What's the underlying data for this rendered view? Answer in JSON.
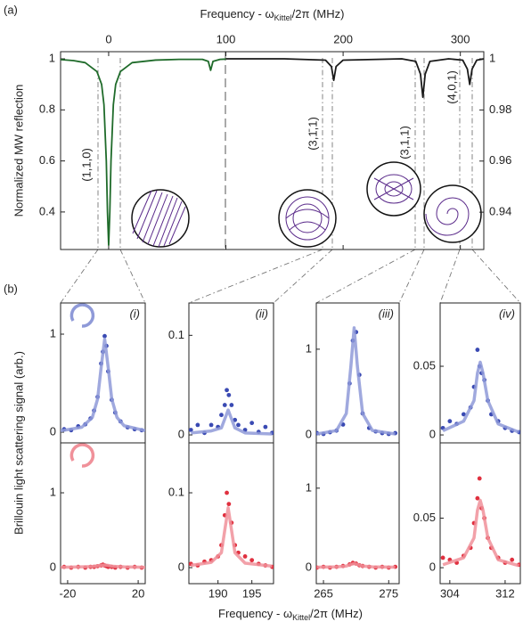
{
  "panel_labels": [
    "(a)",
    "(b)"
  ],
  "shared_y_label": "Brillouin light scattering signal (arb.)",
  "shared_x_label": [
    "Frequency - ω",
    "Kittel",
    "/2π (MHz)"
  ],
  "chart_data": [
    {
      "type": "line",
      "x_label": [
        "Frequency - ω",
        "Kittel",
        "/2π (MHz)"
      ],
      "y_label": "Normalized MW reflection",
      "annotations": [
        "(1,1,0)",
        "(3,1̄,1)",
        "(3,1,1)",
        "(4,0,1)"
      ],
      "xlim": [
        -41,
        320
      ],
      "xticks": [
        0,
        100,
        200,
        300
      ],
      "ylim": [
        0.253,
        1.028
      ],
      "yticks": [
        0.4,
        0.6,
        0.8,
        1
      ],
      "y2lim": [
        0.9254,
        1.0028
      ],
      "y2ticks": [
        0.94,
        0.96,
        0.98,
        1
      ],
      "series": [
        {
          "color": "#1f6b2a",
          "x": [
            -41,
            -30,
            -20,
            -10,
            -6,
            -4,
            -2,
            -1,
            0,
            1,
            2,
            4,
            6,
            10,
            20,
            40,
            60,
            80,
            85,
            87,
            89,
            95,
            100
          ],
          "values": [
            0.997,
            0.993,
            0.985,
            0.95,
            0.9,
            0.82,
            0.6,
            0.4,
            0.27,
            0.4,
            0.6,
            0.82,
            0.9,
            0.95,
            0.985,
            0.995,
            0.998,
            0.998,
            0.99,
            0.955,
            0.99,
            0.998,
            0.999
          ]
        },
        {
          "color": "#1a1a1a",
          "axis": "y2",
          "x": [
            100,
            150,
            185,
            190,
            192,
            194,
            200,
            250,
            262,
            266,
            268,
            270,
            274,
            290,
            302,
            306,
            308,
            310,
            314,
            320
          ],
          "values": [
            1,
            1,
            0.9995,
            0.997,
            0.9916,
            0.997,
            0.9995,
            1,
            0.999,
            0.994,
            0.985,
            0.994,
            0.999,
            1,
            0.9995,
            0.996,
            0.99,
            0.996,
            0.9995,
            1
          ]
        }
      ]
    },
    {
      "type": "scatter",
      "label": "(i)",
      "xlim": [
        -24,
        24
      ],
      "ylim": [
        -0.109,
        1.318
      ],
      "yticks": [
        0,
        1
      ],
      "series": [
        {
          "mode": "markers",
          "color": "#3a4ab3",
          "x": [
            -22,
            -18,
            -14,
            -10,
            -7,
            -5,
            -3,
            -1,
            0,
            1,
            2,
            3,
            5,
            7,
            10,
            14,
            18,
            22
          ],
          "values": [
            0.03,
            0.02,
            0.06,
            0.08,
            0.14,
            0.22,
            0.36,
            0.7,
            0.82,
            0.98,
            0.88,
            0.62,
            0.33,
            0.2,
            0.11,
            0.05,
            0.03,
            0.02
          ]
        },
        {
          "mode": "line",
          "color": "#8f9ad8",
          "x": [
            -24,
            -12,
            -6,
            -3,
            -1,
            1,
            3,
            5,
            8,
            12,
            24
          ],
          "values": [
            0.014,
            0.05,
            0.15,
            0.34,
            0.66,
            0.95,
            0.66,
            0.34,
            0.15,
            0.066,
            0.016
          ]
        }
      ]
    },
    {
      "type": "scatter",
      "xlim": [
        -24,
        24
      ],
      "xticks": [
        -20,
        20
      ],
      "ylim": [
        -0.214,
        1.667
      ],
      "yticks": [
        0,
        1
      ],
      "series": [
        {
          "mode": "markers",
          "color": "#e0303f",
          "x": [
            -22,
            -18,
            -14,
            -10,
            -7,
            -5,
            -3,
            -1,
            0,
            1,
            2,
            3,
            5,
            7,
            10,
            14,
            18,
            22
          ],
          "values": [
            0.01,
            0,
            0.01,
            0,
            0.01,
            0.01,
            0.02,
            0.03,
            0.04,
            0.03,
            0.02,
            0.01,
            0.01,
            0,
            0.01,
            0,
            0.01,
            0
          ]
        },
        {
          "mode": "line",
          "color": "#f0919a",
          "x": [
            -24,
            -12,
            -6,
            -3,
            -1,
            1,
            3,
            5,
            8,
            12,
            24
          ],
          "values": [
            0.005,
            0.01,
            0.015,
            0.025,
            0.03,
            0.035,
            0.03,
            0.02,
            0.015,
            0.01,
            0.005
          ]
        }
      ]
    },
    {
      "type": "scatter",
      "label": "(ii)",
      "xlim": [
        185.7,
        198.2
      ],
      "ylim": [
        -0.008,
        0.1325
      ],
      "yticks": [
        0,
        0.1
      ],
      "series": [
        {
          "mode": "markers",
          "color": "#3a4ab3",
          "x": [
            186,
            187,
            188,
            189,
            190,
            190.5,
            191,
            191.3,
            191.6,
            192,
            192.5,
            193,
            194,
            195,
            196,
            197,
            198
          ],
          "values": [
            0.005,
            0.01,
            0.002,
            0.01,
            0.008,
            0.02,
            0.03,
            0.045,
            0.04,
            0.03,
            0.015,
            0.01,
            0.005,
            0.012,
            0.003,
            0.008,
            0.002
          ]
        },
        {
          "mode": "line",
          "color": "#8f9ad8",
          "x": [
            186,
            189,
            190.5,
            191,
            191.5,
            192,
            192.5,
            194,
            198
          ],
          "values": [
            0.002,
            0.004,
            0.007,
            0.016,
            0.025,
            0.016,
            0.007,
            0.002,
            0.001
          ]
        }
      ]
    },
    {
      "type": "scatter",
      "xlim": [
        185.7,
        198.2
      ],
      "xticks": [
        190,
        195
      ],
      "ylim": [
        -0.0214,
        0.1667
      ],
      "yticks": [
        0,
        0.1
      ],
      "series": [
        {
          "mode": "markers",
          "color": "#e0303f",
          "x": [
            186,
            187,
            188,
            189,
            190,
            190.5,
            191,
            191.3,
            191.6,
            192,
            192.5,
            193,
            194,
            195,
            196,
            197,
            198
          ],
          "values": [
            0.005,
            0.003,
            0.008,
            0.01,
            0.015,
            0.03,
            0.07,
            0.1,
            0.085,
            0.06,
            0.03,
            0.02,
            0.015,
            0.01,
            0.005,
            0.003,
            0.001
          ]
        },
        {
          "mode": "line",
          "color": "#f0919a",
          "x": [
            186,
            189,
            190.5,
            191,
            191.5,
            192,
            192.5,
            194,
            198
          ],
          "values": [
            0.003,
            0.007,
            0.02,
            0.05,
            0.08,
            0.05,
            0.02,
            0.006,
            0.002
          ]
        }
      ]
    },
    {
      "type": "scatter",
      "label": "(iii)",
      "xlim": [
        263.9,
        276.6
      ],
      "ylim": [
        -0.094,
        1.54
      ],
      "yticks": [
        0,
        1
      ],
      "series": [
        {
          "mode": "markers",
          "color": "#3a4ab3",
          "x": [
            264,
            265,
            266,
            267,
            268,
            269,
            269.5,
            270,
            270.5,
            271,
            272,
            273,
            274,
            275,
            276
          ],
          "values": [
            0.02,
            0.01,
            0.03,
            0.05,
            0.12,
            0.6,
            1.1,
            1.2,
            0.7,
            0.25,
            0.08,
            0.04,
            0.02,
            0.01,
            0.02
          ]
        },
        {
          "mode": "line",
          "color": "#8f9ad8",
          "x": [
            264,
            267,
            268.5,
            269.2,
            269.7,
            270.2,
            271,
            272.5,
            276
          ],
          "values": [
            0.01,
            0.05,
            0.25,
            0.8,
            1.25,
            0.8,
            0.25,
            0.05,
            0.01
          ]
        }
      ]
    },
    {
      "type": "scatter",
      "xlim": [
        263.9,
        276.6
      ],
      "xticks": [
        265,
        275
      ],
      "ylim": [
        -0.202,
        1.57
      ],
      "yticks": [
        0,
        1
      ],
      "series": [
        {
          "mode": "markers",
          "color": "#e0303f",
          "x": [
            264,
            265,
            266,
            267,
            268,
            269,
            269.5,
            270,
            270.5,
            271,
            272,
            273,
            274,
            275,
            276
          ],
          "values": [
            0,
            0.01,
            0,
            0.01,
            0.02,
            0.04,
            0.06,
            0.05,
            0.03,
            0.02,
            0.01,
            0,
            0.01,
            0,
            0.01
          ]
        },
        {
          "mode": "line",
          "color": "#f0919a",
          "x": [
            264,
            267,
            268.5,
            269.2,
            269.7,
            270.2,
            271,
            272.5,
            276
          ],
          "values": [
            0.005,
            0.01,
            0.02,
            0.04,
            0.05,
            0.04,
            0.02,
            0.01,
            0.005
          ]
        }
      ]
    },
    {
      "type": "scatter",
      "label": "(iv)",
      "xlim": [
        302.6,
        314.2
      ],
      "ylim": [
        -0.0058,
        0.0961
      ],
      "yticks": [
        0,
        0.05
      ],
      "series": [
        {
          "mode": "markers",
          "color": "#3a4ab3",
          "x": [
            303,
            304,
            305,
            306,
            307,
            307.5,
            308,
            308.3,
            308.6,
            309,
            309.5,
            310,
            311,
            312,
            313,
            314
          ],
          "values": [
            0.005,
            0.01,
            0.008,
            0.015,
            0.02,
            0.035,
            0.062,
            0.05,
            0.045,
            0.04,
            0.025,
            0.015,
            0.01,
            0.005,
            0.003,
            0.002
          ]
        },
        {
          "mode": "line",
          "color": "#8f9ad8",
          "x": [
            303,
            306,
            307.5,
            308,
            308.4,
            308.8,
            309.5,
            311,
            314
          ],
          "values": [
            0.003,
            0.01,
            0.025,
            0.045,
            0.053,
            0.045,
            0.025,
            0.008,
            0.002
          ]
        }
      ]
    },
    {
      "type": "scatter",
      "xlim": [
        302.6,
        314.2
      ],
      "xticks": [
        304,
        312
      ],
      "ylim": [
        -0.0161,
        0.1259
      ],
      "yticks": [
        0,
        0.05
      ],
      "series": [
        {
          "mode": "markers",
          "color": "#e0303f",
          "x": [
            303,
            304,
            305,
            306,
            307,
            307.5,
            308,
            308.3,
            308.6,
            309,
            309.5,
            310,
            311,
            312,
            313,
            314
          ],
          "values": [
            0.01,
            0.008,
            0.005,
            0.012,
            0.02,
            0.045,
            0.07,
            0.09,
            0.06,
            0.05,
            0.03,
            0.02,
            0.01,
            0.005,
            0.008,
            0.003
          ]
        },
        {
          "mode": "line",
          "color": "#f0919a",
          "x": [
            303,
            306,
            307.5,
            308,
            308.4,
            308.8,
            309.5,
            311,
            314
          ],
          "values": [
            0.003,
            0.01,
            0.03,
            0.058,
            0.068,
            0.058,
            0.03,
            0.008,
            0.002
          ]
        }
      ]
    }
  ]
}
